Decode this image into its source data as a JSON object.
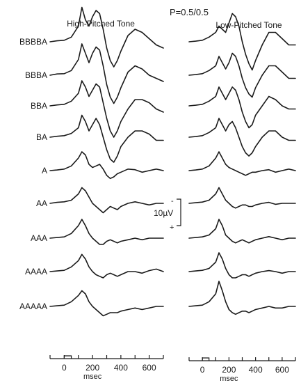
{
  "chart_data": {
    "type": "line",
    "title": "P=0.5/0.5",
    "xlabel": "msec",
    "x_ticks": [
      "0",
      "200",
      "400",
      "600"
    ],
    "xlim": [
      -100,
      700
    ],
    "scale_bar": {
      "label": "10µV",
      "polarity_negative": "-",
      "polarity_positive": "+"
    },
    "sequence_labels": [
      "BBBBA",
      "BBBA",
      "BBA",
      "BA",
      "A",
      "AA",
      "AAA",
      "AAAA",
      "AAAAA"
    ],
    "x": [
      -100,
      -50,
      0,
      50,
      100,
      125,
      150,
      175,
      200,
      225,
      250,
      275,
      300,
      325,
      350,
      375,
      400,
      450,
      500,
      550,
      600,
      650,
      700
    ],
    "panels": [
      {
        "title": "High-Pitched Tone",
        "series": [
          {
            "label": "BBBBA",
            "values": [
              0,
              0.3,
              0.5,
              1.5,
              5,
              11,
              7,
              5,
              8,
              10,
              9,
              4,
              -2,
              -6,
              -8,
              -6,
              -3,
              2,
              4,
              3,
              1,
              -1,
              -2
            ]
          },
          {
            "label": "BBBA",
            "values": [
              0,
              0.4,
              0.5,
              1.5,
              5,
              10,
              7,
              4,
              7,
              9,
              8,
              3,
              -3,
              -7,
              -9,
              -7,
              -4,
              1,
              3,
              2,
              0,
              -1,
              -2
            ]
          },
          {
            "label": "BBA",
            "values": [
              0,
              0.3,
              0.5,
              1.5,
              4,
              8,
              6,
              3,
              5,
              7,
              6,
              1,
              -4,
              -8,
              -10,
              -8,
              -5,
              -1,
              2,
              2,
              1,
              -1,
              -2
            ]
          },
          {
            "label": "BA",
            "values": [
              0,
              0.3,
              0.5,
              1.2,
              3,
              7,
              5,
              2,
              4,
              6,
              4,
              0,
              -4,
              -7,
              -8,
              -6,
              -3,
              0,
              2,
              2,
              1,
              -1,
              -1
            ]
          },
          {
            "label": "A",
            "values": [
              0,
              0.2,
              0.5,
              1.5,
              4,
              6,
              5,
              2,
              1,
              1.5,
              2,
              0.5,
              -1.5,
              -2.5,
              -2,
              -1,
              -0.5,
              0.5,
              0.3,
              -0.5,
              0,
              0.5,
              0
            ]
          },
          {
            "label": "AA",
            "values": [
              0,
              0.3,
              0.5,
              1,
              3,
              5,
              4,
              2,
              0,
              -1,
              -2,
              -3,
              -2,
              -1,
              -1.5,
              -2,
              -1,
              0,
              0.5,
              0,
              -0.5,
              0,
              0
            ]
          },
          {
            "label": "AAA",
            "values": [
              0,
              0.2,
              0.4,
              1.5,
              4,
              6,
              4,
              1.5,
              0,
              -1,
              -2,
              -2,
              -1,
              -0.5,
              -1,
              -1.5,
              -1,
              -0.5,
              0,
              -0.5,
              0,
              0,
              0
            ]
          },
          {
            "label": "AAAA",
            "values": [
              0,
              0.2,
              0.4,
              1.5,
              3.5,
              5.5,
              4,
              1.5,
              0,
              -1,
              -1.5,
              -2,
              -1,
              -0.5,
              -1,
              -1.5,
              -1,
              0,
              0,
              -0.5,
              0.3,
              0.8,
              0
            ]
          },
          {
            "label": "AAAAA",
            "values": [
              0,
              0.2,
              0.4,
              1.5,
              3.5,
              5,
              4,
              1.5,
              0,
              -1,
              -2,
              -3,
              -2.5,
              -2,
              -2,
              -2,
              -1.5,
              -1,
              -0.5,
              -1,
              -0.5,
              0,
              0
            ]
          }
        ]
      },
      {
        "title": "Low-Pitched Tone",
        "series": [
          {
            "label": "BBBBA",
            "values": [
              0,
              0.2,
              0.5,
              1.5,
              3,
              5,
              4,
              3,
              6,
              9,
              8,
              5,
              0,
              -4,
              -7,
              -9,
              -6,
              -1,
              3,
              3,
              1,
              -1,
              -1
            ]
          },
          {
            "label": "BBBA",
            "values": [
              0,
              0.2,
              0.5,
              1.5,
              3,
              6,
              4,
              2,
              4,
              7,
              6,
              3,
              -1,
              -4,
              -6,
              -7,
              -4,
              0,
              3,
              3,
              1,
              -1,
              -1
            ]
          },
          {
            "label": "BBA",
            "values": [
              0,
              0.2,
              0.5,
              1.5,
              3,
              6,
              4,
              2,
              4,
              6,
              5,
              2,
              -2,
              -5,
              -7,
              -6,
              -3,
              0,
              3,
              2,
              0,
              -1,
              -1
            ]
          },
          {
            "label": "BA",
            "values": [
              0,
              0.2,
              0.5,
              1.5,
              3,
              6,
              4,
              2,
              4,
              5,
              3,
              0,
              -3,
              -5,
              -6,
              -5,
              -3,
              0,
              2,
              2,
              0,
              -1,
              -1
            ]
          },
          {
            "label": "A",
            "values": [
              0,
              0.2,
              0.5,
              1.5,
              4,
              6,
              4,
              2,
              1,
              0.5,
              0,
              -0.5,
              -1,
              -1.5,
              -1,
              -0.5,
              -0.5,
              0,
              0.3,
              -0.5,
              0,
              0.5,
              0
            ]
          },
          {
            "label": "AA",
            "values": [
              0,
              0.2,
              0.4,
              1,
              3,
              5,
              3,
              1,
              0,
              -1,
              -1.5,
              -1,
              -0.5,
              -0.5,
              -1,
              -1,
              -0.5,
              0,
              0.3,
              -0.3,
              0,
              0,
              0
            ]
          },
          {
            "label": "AAA",
            "values": [
              0,
              0.2,
              0.4,
              1,
              3,
              6,
              4,
              1,
              0,
              -1,
              -1.5,
              -1,
              -0.5,
              -1,
              -1.5,
              -1,
              -0.5,
              0,
              0.5,
              0,
              -0.5,
              0,
              0
            ]
          },
          {
            "label": "AAAA",
            "values": [
              0,
              0.2,
              0.4,
              1,
              3,
              6,
              4,
              1,
              -1,
              -2,
              -2,
              -1.5,
              -1,
              -1,
              -1.5,
              -1,
              -0.5,
              0,
              0.3,
              0,
              -0.5,
              0,
              0
            ]
          },
          {
            "label": "AAAAA",
            "values": [
              0,
              0.2,
              0.4,
              1.5,
              4,
              8,
              5,
              1.5,
              -1,
              -2,
              -2.5,
              -2,
              -1.5,
              -1.5,
              -2,
              -1.5,
              -1,
              -0.5,
              0,
              -0.5,
              -0.5,
              0,
              0
            ]
          }
        ]
      }
    ]
  }
}
